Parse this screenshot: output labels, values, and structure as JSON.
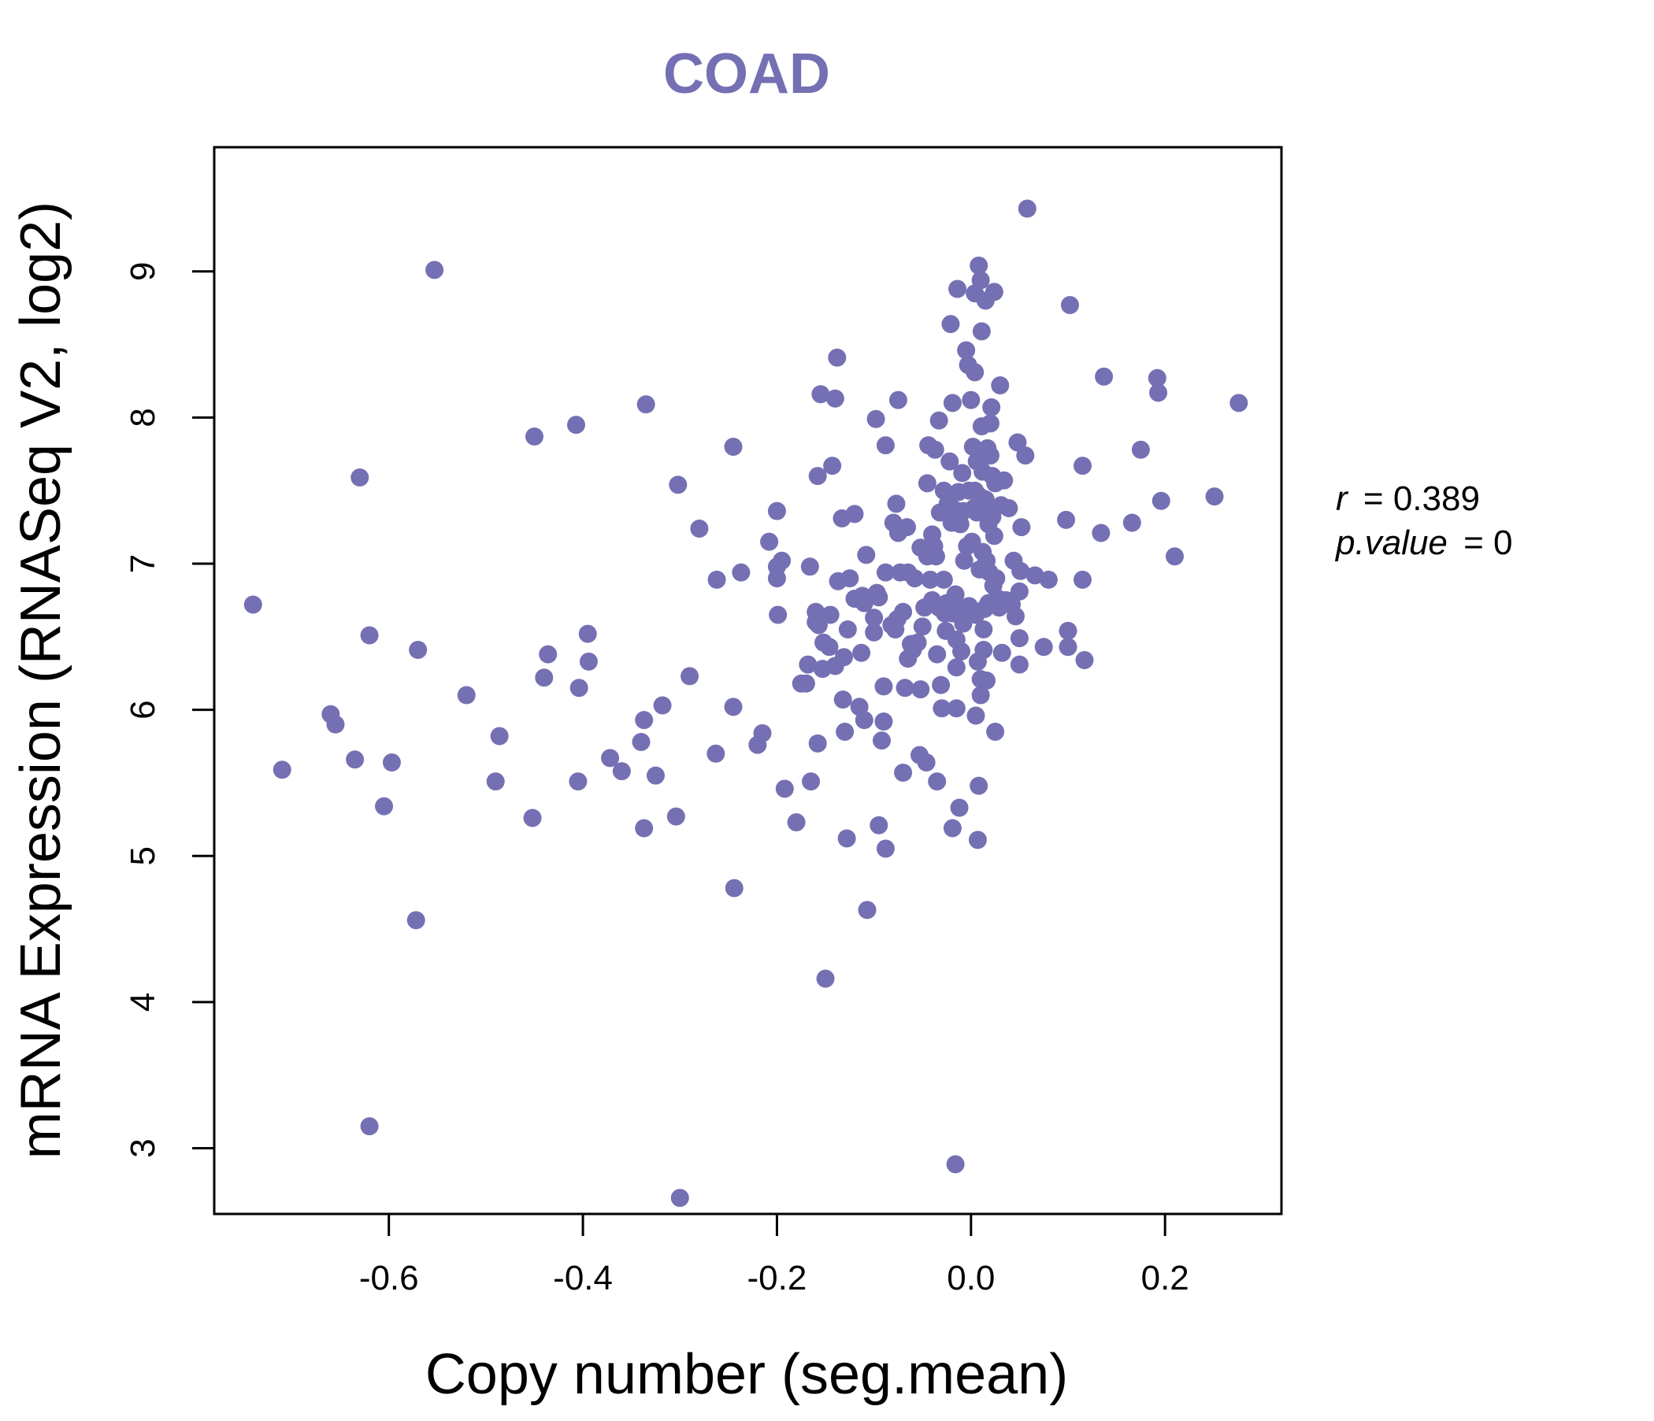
{
  "colors": {
    "accent": "#7570b3",
    "axis": "#000000",
    "background": "#ffffff"
  },
  "chart_data": {
    "type": "scatter",
    "title": "COAD",
    "xlabel": "Copy number (seg.mean)",
    "ylabel": "mRNA Expression (RNASeq V2, log2)",
    "xlim": [
      -0.78,
      0.32
    ],
    "ylim": [
      2.55,
      9.85
    ],
    "xticks": [
      -0.6,
      -0.4,
      -0.2,
      0.0,
      0.2
    ],
    "xtick_labels": [
      "-0.6",
      "-0.4",
      "-0.2",
      "0.0",
      "0.2"
    ],
    "yticks": [
      3,
      4,
      5,
      6,
      7,
      8,
      9
    ],
    "ytick_labels": [
      "3",
      "4",
      "5",
      "6",
      "7",
      "8",
      "9"
    ],
    "stats": {
      "r_symbol": "r",
      "r_value": "0.389",
      "p_symbol": "p.value",
      "p_value": "0"
    },
    "points": [
      [
        -0.74,
        6.72
      ],
      [
        -0.71,
        5.59
      ],
      [
        -0.66,
        5.97
      ],
      [
        -0.655,
        5.9
      ],
      [
        -0.635,
        5.66
      ],
      [
        -0.63,
        7.59
      ],
      [
        -0.62,
        6.51
      ],
      [
        -0.62,
        3.15
      ],
      [
        -0.605,
        5.34
      ],
      [
        -0.597,
        5.64
      ],
      [
        -0.57,
        6.41
      ],
      [
        -0.572,
        4.56
      ],
      [
        -0.553,
        9.01
      ],
      [
        -0.52,
        6.1
      ],
      [
        -0.49,
        5.51
      ],
      [
        -0.486,
        5.82
      ],
      [
        -0.452,
        5.26
      ],
      [
        -0.45,
        7.87
      ],
      [
        -0.44,
        6.22
      ],
      [
        -0.436,
        6.38
      ],
      [
        -0.407,
        7.95
      ],
      [
        -0.404,
        6.15
      ],
      [
        -0.405,
        5.51
      ],
      [
        -0.395,
        6.52
      ],
      [
        -0.394,
        6.33
      ],
      [
        -0.372,
        5.67
      ],
      [
        -0.36,
        5.58
      ],
      [
        -0.34,
        5.78
      ],
      [
        -0.337,
        5.93
      ],
      [
        -0.337,
        5.19
      ],
      [
        -0.335,
        8.09
      ],
      [
        -0.325,
        5.55
      ],
      [
        -0.318,
        6.03
      ],
      [
        -0.302,
        7.54
      ],
      [
        -0.304,
        5.27
      ],
      [
        -0.3,
        2.66
      ],
      [
        -0.29,
        6.23
      ],
      [
        -0.28,
        7.24
      ],
      [
        -0.262,
        6.89
      ],
      [
        -0.263,
        5.7
      ],
      [
        -0.245,
        6.02
      ],
      [
        -0.245,
        7.8
      ],
      [
        -0.244,
        4.78
      ],
      [
        -0.237,
        6.94
      ],
      [
        -0.22,
        5.76
      ],
      [
        -0.215,
        5.84
      ],
      [
        -0.208,
        7.15
      ],
      [
        -0.2,
        7.36
      ],
      [
        -0.2,
        6.98
      ],
      [
        -0.2,
        6.9
      ],
      [
        -0.199,
        6.65
      ],
      [
        -0.195,
        7.02
      ],
      [
        -0.192,
        5.46
      ],
      [
        -0.18,
        5.23
      ],
      [
        -0.175,
        6.18
      ],
      [
        -0.17,
        6.18
      ],
      [
        -0.168,
        6.31
      ],
      [
        -0.166,
        6.98
      ],
      [
        -0.165,
        5.51
      ],
      [
        -0.16,
        6.6
      ],
      [
        -0.16,
        6.67
      ],
      [
        -0.158,
        7.6
      ],
      [
        -0.157,
        6.58
      ],
      [
        -0.158,
        5.77
      ],
      [
        -0.155,
        8.16
      ],
      [
        -0.153,
        6.28
      ],
      [
        -0.152,
        6.46
      ],
      [
        -0.15,
        4.16
      ],
      [
        -0.146,
        6.43
      ],
      [
        -0.145,
        6.65
      ],
      [
        -0.143,
        7.67
      ],
      [
        -0.14,
        8.13
      ],
      [
        -0.14,
        6.3
      ],
      [
        -0.138,
        8.41
      ],
      [
        -0.137,
        6.88
      ],
      [
        -0.133,
        7.31
      ],
      [
        -0.132,
        6.07
      ],
      [
        -0.131,
        6.36
      ],
      [
        -0.13,
        5.85
      ],
      [
        -0.128,
        5.12
      ],
      [
        -0.127,
        6.55
      ],
      [
        -0.125,
        6.9
      ],
      [
        -0.12,
        7.34
      ],
      [
        -0.12,
        6.76
      ],
      [
        -0.115,
        6.02
      ],
      [
        -0.113,
        6.39
      ],
      [
        -0.112,
        6.78
      ],
      [
        -0.11,
        5.93
      ],
      [
        -0.11,
        6.73
      ],
      [
        -0.108,
        7.06
      ],
      [
        -0.107,
        4.63
      ],
      [
        -0.1,
        6.53
      ],
      [
        -0.1,
        6.63
      ],
      [
        -0.098,
        7.99
      ],
      [
        -0.097,
        6.8
      ],
      [
        -0.095,
        6.77
      ],
      [
        -0.095,
        5.21
      ],
      [
        -0.092,
        5.79
      ],
      [
        -0.09,
        6.16
      ],
      [
        -0.09,
        5.92
      ],
      [
        -0.088,
        7.81
      ],
      [
        -0.088,
        5.05
      ],
      [
        -0.088,
        6.94
      ],
      [
        -0.082,
        6.58
      ],
      [
        -0.08,
        7.28
      ],
      [
        -0.078,
        6.55
      ],
      [
        -0.077,
        7.41
      ],
      [
        -0.076,
        6.62
      ],
      [
        -0.075,
        8.12
      ],
      [
        -0.075,
        7.21
      ],
      [
        -0.073,
        6.94
      ],
      [
        -0.07,
        6.67
      ],
      [
        -0.07,
        5.57
      ],
      [
        -0.068,
        6.15
      ],
      [
        -0.066,
        7.25
      ],
      [
        -0.065,
        6.35
      ],
      [
        -0.065,
        6.94
      ],
      [
        -0.062,
        6.45
      ],
      [
        -0.06,
        6.41
      ],
      [
        -0.058,
        6.9
      ],
      [
        -0.055,
        6.46
      ],
      [
        -0.053,
        5.69
      ],
      [
        -0.052,
        6.14
      ],
      [
        -0.052,
        7.11
      ],
      [
        -0.05,
        6.57
      ],
      [
        -0.048,
        6.7
      ],
      [
        -0.046,
        5.64
      ],
      [
        -0.045,
        7.05
      ],
      [
        -0.045,
        7.55
      ],
      [
        -0.044,
        7.81
      ],
      [
        -0.042,
        6.89
      ],
      [
        -0.04,
        7.2
      ],
      [
        -0.04,
        6.75
      ],
      [
        -0.038,
        7.12
      ],
      [
        -0.037,
        7.78
      ],
      [
        -0.036,
        7.05
      ],
      [
        -0.035,
        6.38
      ],
      [
        -0.035,
        5.51
      ],
      [
        -0.033,
        6.7
      ],
      [
        -0.033,
        7.98
      ],
      [
        -0.032,
        7.35
      ],
      [
        -0.031,
        6.17
      ],
      [
        -0.03,
        6.01
      ],
      [
        -0.028,
        7.5
      ],
      [
        -0.028,
        6.89
      ],
      [
        -0.027,
        6.66
      ],
      [
        -0.026,
        6.54
      ],
      [
        -0.025,
        6.73
      ],
      [
        -0.024,
        7.41
      ],
      [
        -0.022,
        7.7
      ],
      [
        -0.021,
        8.64
      ],
      [
        -0.02,
        7.28
      ],
      [
        -0.019,
        8.1
      ],
      [
        -0.019,
        6.66
      ],
      [
        -0.019,
        5.19
      ],
      [
        -0.017,
        7.37
      ],
      [
        -0.016,
        2.89
      ],
      [
        -0.016,
        6.79
      ],
      [
        -0.015,
        6.48
      ],
      [
        -0.015,
        6.01
      ],
      [
        -0.015,
        6.29
      ],
      [
        -0.014,
        8.88
      ],
      [
        -0.013,
        7.49
      ],
      [
        -0.012,
        6.68
      ],
      [
        -0.012,
        5.33
      ],
      [
        -0.011,
        7.27
      ],
      [
        -0.01,
        6.4
      ],
      [
        -0.009,
        7.62
      ],
      [
        -0.008,
        7.36
      ],
      [
        -0.008,
        6.59
      ],
      [
        -0.007,
        7.02
      ],
      [
        -0.006,
        6.64
      ],
      [
        -0.005,
        8.46
      ],
      [
        -0.004,
        7.12
      ],
      [
        -0.003,
        8.36
      ],
      [
        -0.002,
        6.71
      ],
      [
        -0.002,
        7.5
      ],
      [
        -0.001,
        6.68
      ],
      [
        0.0,
        8.12
      ],
      [
        0.001,
        7.15
      ],
      [
        0.002,
        7.8
      ],
      [
        0.003,
        7.38
      ],
      [
        0.004,
        8.31
      ],
      [
        0.004,
        8.85
      ],
      [
        0.004,
        7.5
      ],
      [
        0.005,
        5.96
      ],
      [
        0.005,
        6.65
      ],
      [
        0.006,
        7.7
      ],
      [
        0.006,
        7.35
      ],
      [
        0.007,
        6.33
      ],
      [
        0.007,
        5.11
      ],
      [
        0.008,
        5.48
      ],
      [
        0.008,
        9.04
      ],
      [
        0.009,
        7.46
      ],
      [
        0.009,
        6.96
      ],
      [
        0.01,
        8.94
      ],
      [
        0.01,
        6.1
      ],
      [
        0.01,
        6.21
      ],
      [
        0.011,
        8.59
      ],
      [
        0.011,
        7.94
      ],
      [
        0.012,
        7.63
      ],
      [
        0.012,
        7.08
      ],
      [
        0.013,
        6.55
      ],
      [
        0.013,
        6.41
      ],
      [
        0.014,
        6.69
      ],
      [
        0.014,
        7.36
      ],
      [
        0.015,
        7.44
      ],
      [
        0.015,
        8.8
      ],
      [
        0.016,
        7.02
      ],
      [
        0.016,
        6.2
      ],
      [
        0.017,
        7.79
      ],
      [
        0.018,
        6.73
      ],
      [
        0.018,
        7.27
      ],
      [
        0.019,
        6.94
      ],
      [
        0.02,
        7.74
      ],
      [
        0.02,
        7.96
      ],
      [
        0.021,
        8.07
      ],
      [
        0.022,
        7.32
      ],
      [
        0.022,
        7.6
      ],
      [
        0.023,
        6.85
      ],
      [
        0.023,
        6.74
      ],
      [
        0.024,
        7.19
      ],
      [
        0.024,
        8.86
      ],
      [
        0.025,
        5.85
      ],
      [
        0.025,
        7.55
      ],
      [
        0.026,
        6.9
      ],
      [
        0.028,
        6.76
      ],
      [
        0.029,
        6.7
      ],
      [
        0.03,
        8.22
      ],
      [
        0.031,
        7.4
      ],
      [
        0.032,
        6.39
      ],
      [
        0.033,
        6.72
      ],
      [
        0.034,
        7.57
      ],
      [
        0.036,
        6.75
      ],
      [
        0.039,
        7.38
      ],
      [
        0.042,
        6.72
      ],
      [
        0.044,
        7.02
      ],
      [
        0.046,
        6.64
      ],
      [
        0.048,
        7.83
      ],
      [
        0.05,
        6.49
      ],
      [
        0.05,
        6.31
      ],
      [
        0.05,
        6.81
      ],
      [
        0.051,
        6.95
      ],
      [
        0.052,
        7.25
      ],
      [
        0.056,
        7.74
      ],
      [
        0.058,
        9.43
      ],
      [
        0.066,
        6.92
      ],
      [
        0.075,
        6.43
      ],
      [
        0.08,
        6.89
      ],
      [
        0.098,
        7.3
      ],
      [
        0.1,
        6.54
      ],
      [
        0.1,
        6.43
      ],
      [
        0.102,
        8.77
      ],
      [
        0.115,
        7.67
      ],
      [
        0.115,
        6.89
      ],
      [
        0.117,
        6.34
      ],
      [
        0.134,
        7.21
      ],
      [
        0.137,
        8.28
      ],
      [
        0.166,
        7.28
      ],
      [
        0.175,
        7.78
      ],
      [
        0.192,
        8.27
      ],
      [
        0.193,
        8.17
      ],
      [
        0.196,
        7.43
      ],
      [
        0.21,
        7.05
      ],
      [
        0.251,
        7.46
      ],
      [
        0.276,
        8.1
      ]
    ]
  }
}
